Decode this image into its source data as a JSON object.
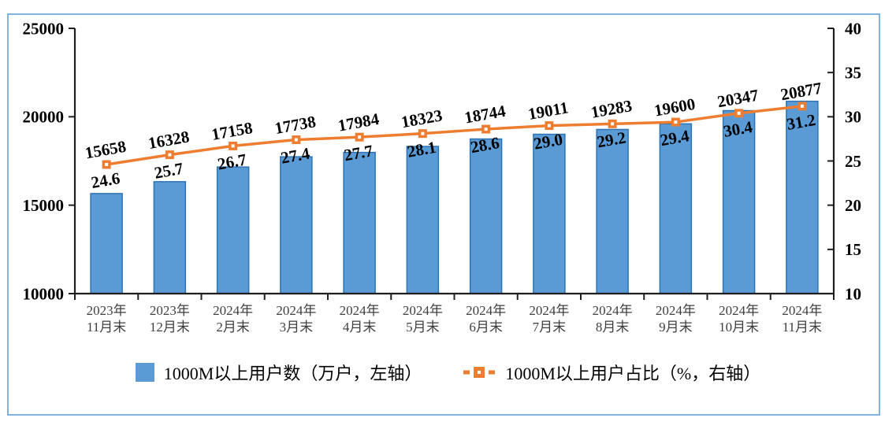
{
  "chart_data": {
    "type": "combo-bar-line",
    "categories": [
      [
        "2023年",
        "11月末"
      ],
      [
        "2023年",
        "12月末"
      ],
      [
        "2024年",
        "2月末"
      ],
      [
        "2024年",
        "3月末"
      ],
      [
        "2024年",
        "4月末"
      ],
      [
        "2024年",
        "5月末"
      ],
      [
        "2024年",
        "6月末"
      ],
      [
        "2024年",
        "7月末"
      ],
      [
        "2024年",
        "8月末"
      ],
      [
        "2024年",
        "9月末"
      ],
      [
        "2024年",
        "10月末"
      ],
      [
        "2024年",
        "11月末"
      ]
    ],
    "series": [
      {
        "name": "1000M以上用户数（万户，左轴）",
        "chart_type": "bar",
        "axis": "left",
        "color": "#5B9BD5",
        "border_color": "#2E74B5",
        "values": [
          15658,
          16328,
          17158,
          17738,
          17984,
          18323,
          18744,
          19011,
          19283,
          19600,
          20347,
          20877
        ]
      },
      {
        "name": "1000M以上用户占比（%，右轴）",
        "chart_type": "line",
        "axis": "right",
        "color": "#ED7D31",
        "marker": "square-with-white-center",
        "values": [
          24.6,
          25.7,
          26.7,
          27.4,
          27.7,
          28.1,
          28.6,
          29.0,
          29.2,
          29.4,
          30.4,
          31.2
        ]
      }
    ],
    "left_axis": {
      "min": 10000,
      "max": 25000,
      "tick_step": 5000,
      "ticks": [
        25000,
        20000,
        15000,
        10000
      ]
    },
    "right_axis": {
      "min": 10,
      "max": 40,
      "tick_step": 5,
      "ticks": [
        40,
        35,
        30,
        25,
        20,
        15,
        10
      ]
    },
    "grid": false,
    "legend_position": "bottom",
    "label_rotation_deg": -10
  },
  "colors": {
    "axis": "#1F1F1F",
    "frame_border": "#7FB2DE",
    "x_label": "#3F3F3F",
    "label_text": "#000000",
    "background": "#FFFFFF"
  }
}
